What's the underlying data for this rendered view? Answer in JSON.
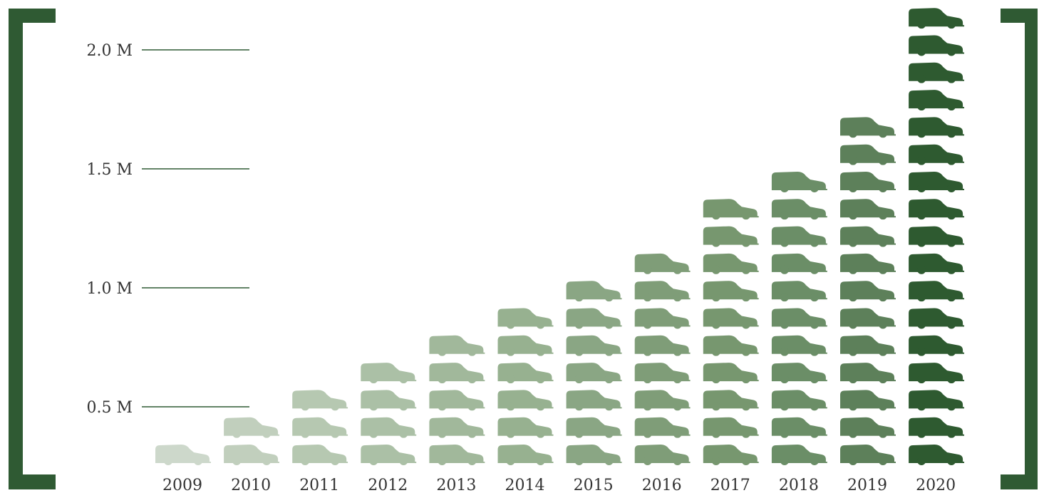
{
  "chart_data": {
    "type": "bar",
    "units_per_icon": 100000,
    "categories": [
      "2009",
      "2010",
      "2011",
      "2012",
      "2013",
      "2014",
      "2015",
      "2016",
      "2017",
      "2018",
      "2019",
      "2020"
    ],
    "values": [
      100000,
      200000,
      300000,
      400000,
      500000,
      600000,
      700000,
      800000,
      1000000,
      1100000,
      1300000,
      1700000
    ],
    "ylim": [
      0,
      2000000
    ],
    "yticks": [
      {
        "value": 500000,
        "label": "0.5 M"
      },
      {
        "value": 1000000,
        "label": "1.0 M"
      },
      {
        "value": 1500000,
        "label": "1.5 M"
      },
      {
        "value": 2000000,
        "label": "2.0 M"
      }
    ],
    "grid": false,
    "title": "",
    "xlabel": "",
    "ylabel": "",
    "colors": {
      "bracket": "#2f5a33",
      "tick_line": "#2f5a33",
      "icon_palette": [
        "#cdd8cb",
        "#c1cfbd",
        "#b6c8b1",
        "#abc0a6",
        "#a1b89b",
        "#97b190",
        "#8aa684",
        "#7f9d78",
        "#77976f",
        "#6b8e67",
        "#5d805a",
        "#2e5a30"
      ]
    }
  }
}
